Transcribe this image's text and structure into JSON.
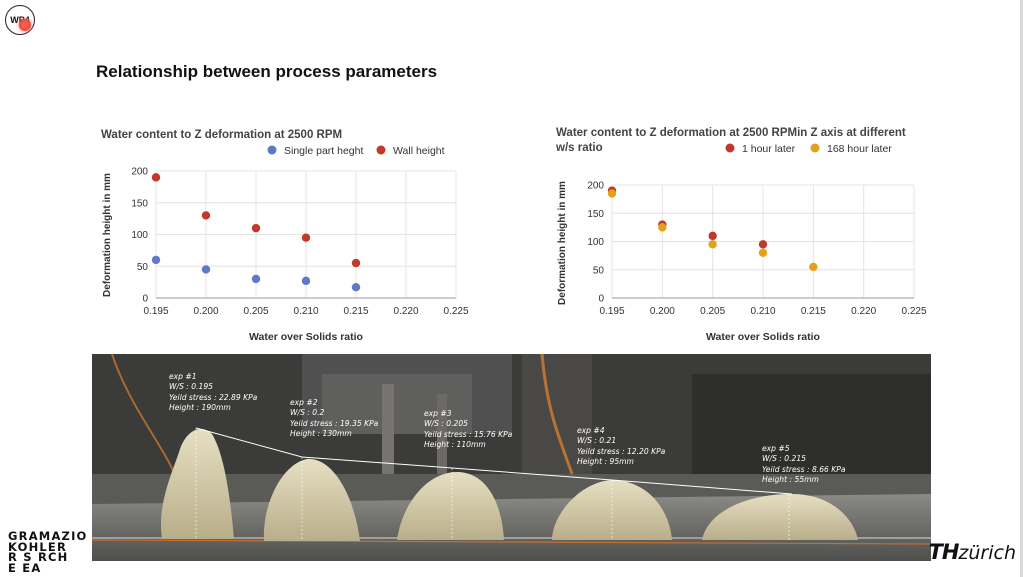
{
  "badge": "WP4",
  "slide_title": "Relationship between process parameters",
  "chart_data": [
    {
      "type": "scatter",
      "title": "Water content to Z deformation at 2500 RPM",
      "xlabel": "Water over Solids ratio",
      "ylabel": "Deformation height in mm",
      "xlim": [
        0.195,
        0.225
      ],
      "ylim": [
        0,
        200
      ],
      "xticks": [
        "0.195",
        "0.200",
        "0.205",
        "0.210",
        "0.215",
        "0.220",
        "0.225"
      ],
      "yticks": [
        "0",
        "50",
        "100",
        "150",
        "200"
      ],
      "grid": true,
      "legend_position": "top",
      "series": [
        {
          "name": "Single part heght",
          "color": "#6079c6",
          "x": [
            0.195,
            0.2,
            0.205,
            0.21,
            0.215
          ],
          "y": [
            60,
            45,
            30,
            27,
            17
          ]
        },
        {
          "name": "Wall height",
          "color": "#c0392b",
          "x": [
            0.195,
            0.2,
            0.205,
            0.21,
            0.215
          ],
          "y": [
            190,
            130,
            110,
            95,
            55
          ]
        }
      ]
    },
    {
      "type": "scatter",
      "title": "Water content to Z deformation at 2500 RPMin Z axis at different w/s ratio",
      "title_lines": [
        "Water content to Z deformation at 2500 RPMin Z axis at different",
        "w/s ratio"
      ],
      "xlabel": "Water over Solids ratio",
      "ylabel": "Deformation height in mm",
      "xlim": [
        0.195,
        0.225
      ],
      "ylim": [
        0,
        200
      ],
      "xticks": [
        "0.195",
        "0.200",
        "0.205",
        "0.210",
        "0.215",
        "0.220",
        "0.225"
      ],
      "yticks": [
        "0",
        "50",
        "100",
        "150",
        "200"
      ],
      "grid": true,
      "legend_position": "top-right",
      "series": [
        {
          "name": "1 hour later",
          "color": "#c0392b",
          "x": [
            0.195,
            0.2,
            0.205,
            0.21
          ],
          "y": [
            190,
            130,
            110,
            95
          ]
        },
        {
          "name": "168 hour later",
          "color": "#e1a11c",
          "x": [
            0.195,
            0.2,
            0.205,
            0.21,
            0.215
          ],
          "y": [
            185,
            125,
            95,
            80,
            55
          ]
        }
      ]
    }
  ],
  "experiments": [
    {
      "title": "exp #1",
      "ws": "W/S : 0.195",
      "stress": "Yeild stress : 22.89 KPa",
      "height": "Height : 190mm"
    },
    {
      "title": "exp #2",
      "ws": "W/S : 0.2",
      "stress": "Yeild stress : 19.35 KPa",
      "height": "Height : 130mm"
    },
    {
      "title": "exp #3",
      "ws": "W/S : 0.205",
      "stress": "Yeild stress : 15.76 KPa",
      "height": "Height : 110mm"
    },
    {
      "title": "exp #4",
      "ws": "W/S : 0.21",
      "stress": "Yeild stress : 12.20 KPa",
      "height": "Height : 95mm"
    },
    {
      "title": "exp #5",
      "ws": "W/S : 0.215",
      "stress": "Yeild stress : 8.66  KPa",
      "height": "Height : 55mm"
    }
  ],
  "logo_left": [
    "GRAMAZIO",
    "KOHLER",
    "R S RCH",
    "E EA"
  ],
  "logo_right_bold": "TH",
  "logo_right_text": "zürich"
}
